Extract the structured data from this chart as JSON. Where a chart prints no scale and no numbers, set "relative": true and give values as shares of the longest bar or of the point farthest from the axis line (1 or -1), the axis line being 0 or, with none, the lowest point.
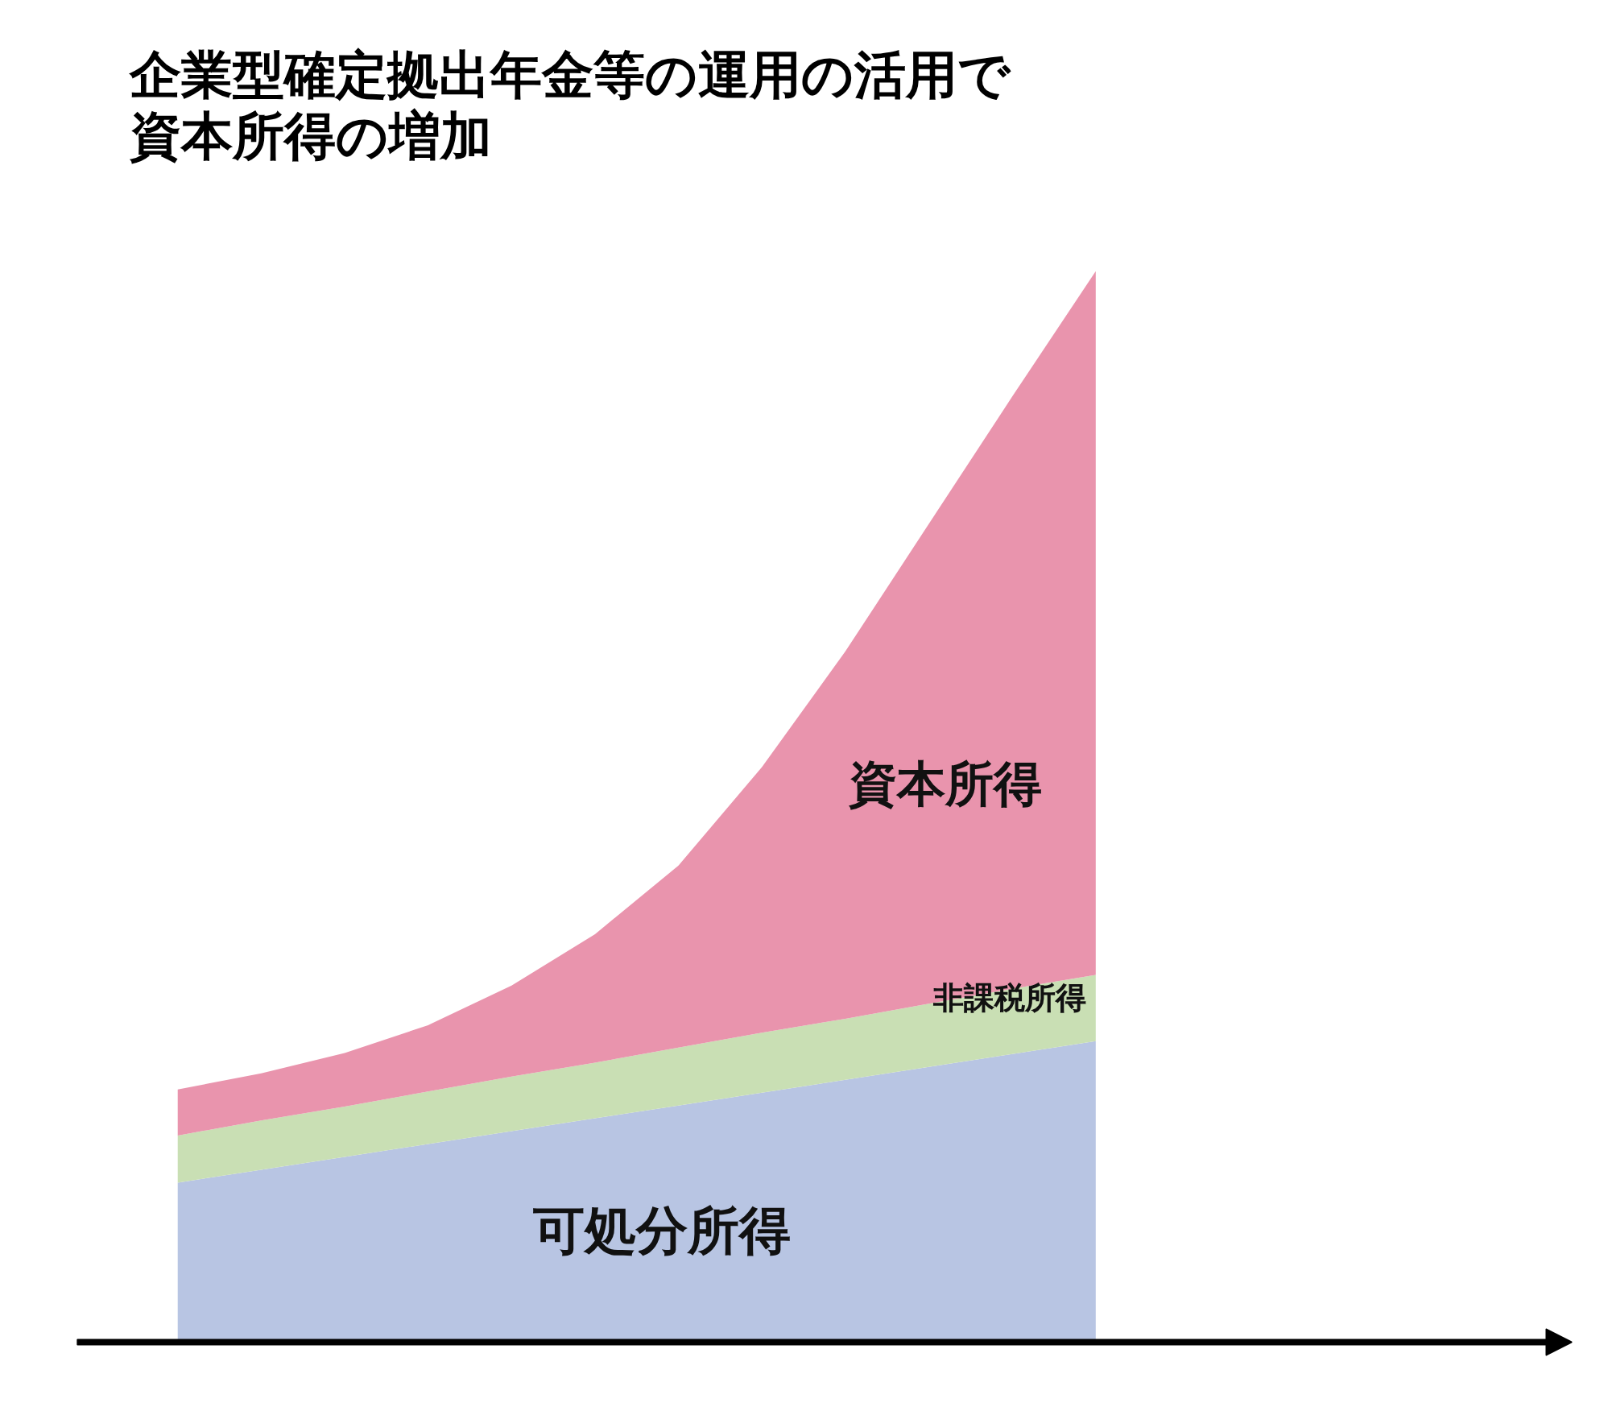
{
  "chart_data": {
    "type": "area",
    "stacked": true,
    "relative": true,
    "title": "企業型確定拠出年金等の運用の活用で資本所得の増加",
    "categories": [
      null,
      null,
      null,
      null,
      null,
      null,
      null,
      null,
      null,
      null,
      null,
      null
    ],
    "series": [
      {
        "name": "可処分所得",
        "color": "#b8c5e3",
        "values": [
          0.149,
          0.161,
          0.173,
          0.185,
          0.197,
          0.209,
          0.221,
          0.233,
          0.245,
          0.257,
          0.269,
          0.281
        ]
      },
      {
        "name": "非課税所得",
        "color": "#c9dfb4",
        "values": [
          0.044,
          0.046,
          0.047,
          0.049,
          0.051,
          0.052,
          0.054,
          0.056,
          0.057,
          0.059,
          0.061,
          0.062
        ]
      },
      {
        "name": "資本所得",
        "color": "#e994ad",
        "values": [
          0.043,
          0.044,
          0.05,
          0.062,
          0.085,
          0.12,
          0.17,
          0.248,
          0.343,
          0.448,
          0.553,
          0.657
        ]
      }
    ],
    "grid": false
  }
}
